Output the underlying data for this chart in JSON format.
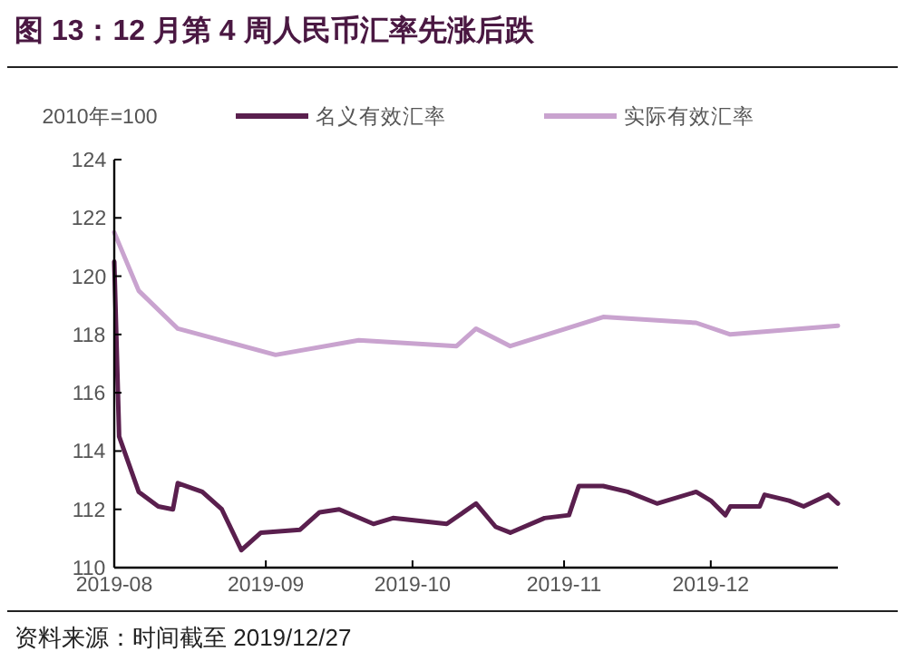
{
  "chart_data": {
    "type": "line",
    "title": "图 13：12 月第 4 周人民币汇率先涨后跌",
    "ylabel": "2010年=100",
    "annotations": [
      "资料来源：时间截至 2019/12/27"
    ],
    "xlim": [
      "2019-08-01",
      "2019-12-27"
    ],
    "xticks": [
      "2019-08",
      "2019-09",
      "2019-10",
      "2019-11",
      "2019-12"
    ],
    "ylim": [
      110,
      124
    ],
    "yticks": [
      110,
      112,
      114,
      116,
      118,
      120,
      122,
      124
    ],
    "legend": "top",
    "grid": false,
    "line_style": "solid",
    "marker": "none",
    "series": [
      {
        "name": "名义有效汇率",
        "color": "#5a1f4e",
        "x": [
          "2019-08-01",
          "2019-08-02",
          "2019-08-06",
          "2019-08-10",
          "2019-08-13",
          "2019-08-14",
          "2019-08-19",
          "2019-08-23",
          "2019-08-27",
          "2019-08-31",
          "2019-09-08",
          "2019-09-12",
          "2019-09-16",
          "2019-09-23",
          "2019-09-27",
          "2019-10-08",
          "2019-10-14",
          "2019-10-18",
          "2019-10-21",
          "2019-10-28",
          "2019-11-02",
          "2019-11-04",
          "2019-11-09",
          "2019-11-14",
          "2019-11-20",
          "2019-11-28",
          "2019-12-01",
          "2019-12-04",
          "2019-12-05",
          "2019-12-11",
          "2019-12-12",
          "2019-12-17",
          "2019-12-20",
          "2019-12-25",
          "2019-12-27"
        ],
        "values": [
          120.5,
          114.5,
          112.6,
          112.1,
          112.0,
          112.9,
          112.6,
          112.0,
          110.6,
          111.2,
          111.3,
          111.9,
          112.0,
          111.5,
          111.7,
          111.5,
          112.2,
          111.4,
          111.2,
          111.7,
          111.8,
          112.8,
          112.8,
          112.6,
          112.2,
          112.6,
          112.3,
          111.8,
          112.1,
          112.1,
          112.5,
          112.3,
          112.1,
          112.5,
          112.2
        ]
      },
      {
        "name": "实际有效汇率",
        "color": "#c9a3cf",
        "x": [
          "2019-08-01",
          "2019-08-06",
          "2019-08-14",
          "2019-09-03",
          "2019-09-20",
          "2019-10-10",
          "2019-10-14",
          "2019-10-21",
          "2019-11-09",
          "2019-11-28",
          "2019-12-05",
          "2019-12-27"
        ],
        "values": [
          121.5,
          119.5,
          118.2,
          117.3,
          117.8,
          117.6,
          118.2,
          117.6,
          118.6,
          118.4,
          118.0,
          118.3
        ]
      }
    ]
  }
}
